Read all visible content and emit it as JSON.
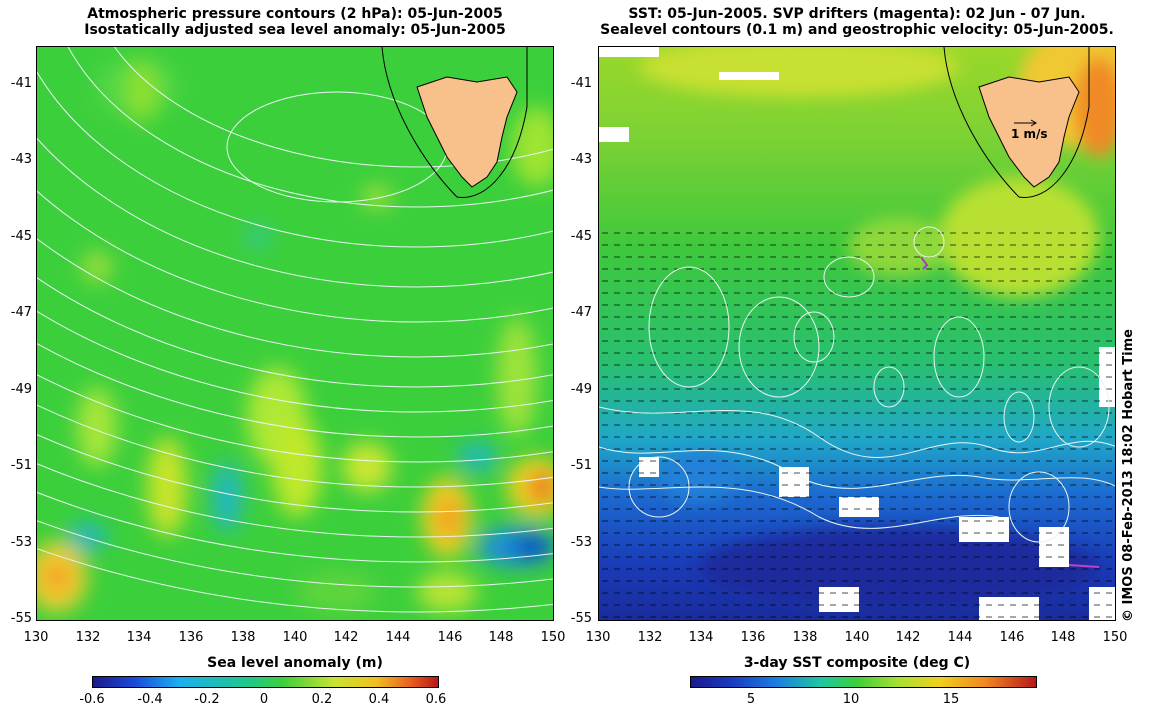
{
  "left_panel": {
    "title_line1": "Atmospheric pressure contours (2 hPa): 05-Jun-2005",
    "title_line2": "Isostatically adjusted sea level anomaly: 05-Jun-2005",
    "y_ticks": [
      "-41",
      "-43",
      "-45",
      "-47",
      "-49",
      "-51",
      "-53",
      "-55"
    ],
    "x_ticks": [
      "130",
      "132",
      "134",
      "136",
      "138",
      "140",
      "142",
      "144",
      "146",
      "148",
      "150"
    ],
    "colorbar": {
      "title": "Sea level anomaly (m)",
      "labels": [
        "-0.6",
        "-0.4",
        "-0.2",
        "0",
        "0.2",
        "0.4",
        "0.6"
      ]
    }
  },
  "right_panel": {
    "title_line1": "SST: 05-Jun-2005. SVP drifters (magenta): 02 Jun - 07 Jun.",
    "title_line2": "Sealevel contours (0.1 m) and geostrophic velocity: 05-Jun-2005.",
    "y_ticks": [
      "-41",
      "-43",
      "-45",
      "-47",
      "-49",
      "-51",
      "-53",
      "-55"
    ],
    "x_ticks": [
      "130",
      "132",
      "134",
      "136",
      "138",
      "140",
      "142",
      "144",
      "146",
      "148",
      "150"
    ],
    "scale_label": "1 m/s",
    "colorbar": {
      "title": "3-day SST composite (deg C)",
      "labels": [
        "5",
        "10",
        "15"
      ]
    }
  },
  "credit": "© IMOS 08-Feb-2013 18:02 Hobart Time",
  "colors": {
    "land": "#f8c08a",
    "ocean_green": "#3dcc3a",
    "sst_blue": "#1f3fbf"
  }
}
